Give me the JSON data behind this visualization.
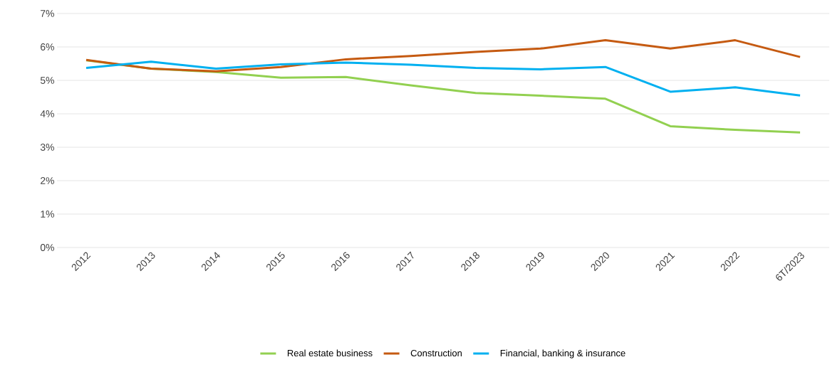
{
  "chart_data": {
    "type": "line",
    "categories": [
      "2012",
      "2013",
      "2014",
      "2015",
      "2016",
      "2017",
      "2018",
      "2019",
      "2020",
      "2021",
      "2022",
      "6T/2023"
    ],
    "series": [
      {
        "name": "Real estate business",
        "color": "#92d050",
        "values": [
          5.6,
          5.35,
          5.25,
          5.08,
          5.1,
          4.85,
          4.62,
          4.54,
          4.45,
          3.63,
          3.52,
          3.44
        ]
      },
      {
        "name": "Construction",
        "color": "#c55a11",
        "values": [
          5.61,
          5.35,
          5.27,
          5.4,
          5.63,
          5.73,
          5.85,
          5.95,
          6.2,
          5.95,
          6.2,
          5.7
        ]
      },
      {
        "name": "Financial, banking & insurance",
        "color": "#00b0f0",
        "values": [
          5.37,
          5.56,
          5.35,
          5.48,
          5.53,
          5.47,
          5.37,
          5.33,
          5.4,
          4.66,
          4.79,
          4.55
        ]
      }
    ],
    "ylim": [
      0,
      7
    ],
    "yticks": [
      {
        "value": 0,
        "label": "0%"
      },
      {
        "value": 1,
        "label": "1%"
      },
      {
        "value": 2,
        "label": "2%"
      },
      {
        "value": 3,
        "label": "3%"
      },
      {
        "value": 4,
        "label": "4%"
      },
      {
        "value": 5,
        "label": "5%"
      },
      {
        "value": 6,
        "label": "6%"
      },
      {
        "value": 7,
        "label": "7%"
      }
    ],
    "grid": "y",
    "legend": "bottom",
    "marker": "none",
    "line_style": "solid"
  }
}
